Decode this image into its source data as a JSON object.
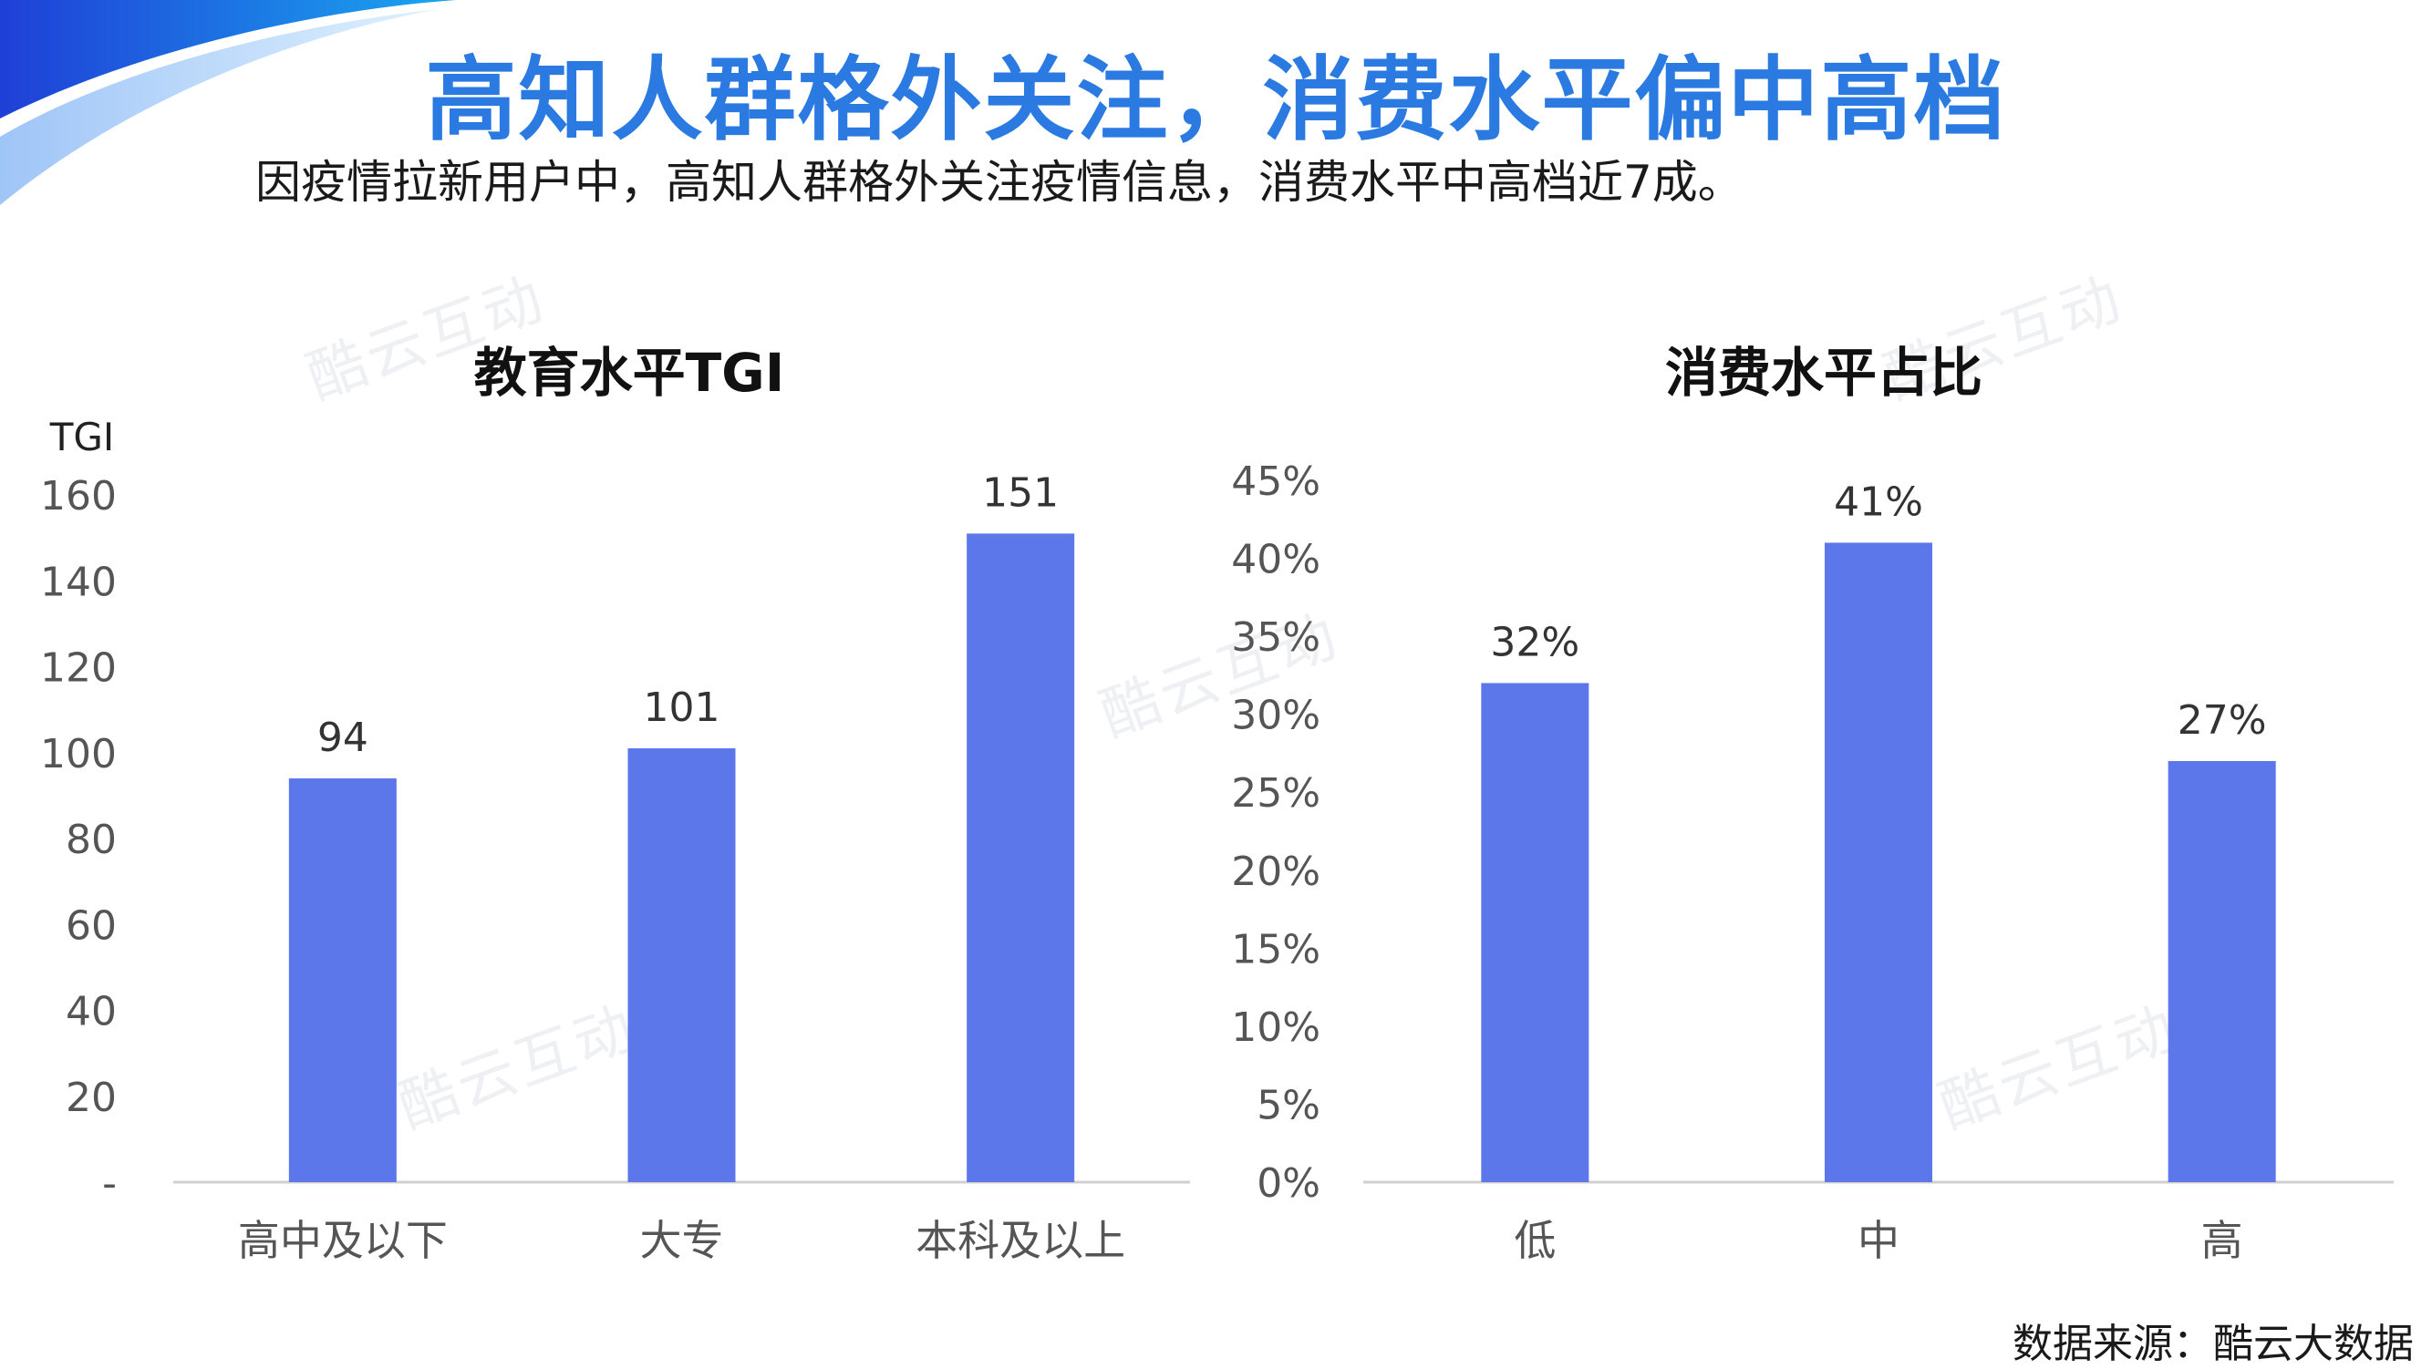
{
  "title": "高知人群格外关注，消费水平偏中高档",
  "subtitle": "因疫情拉新用户中，高知人群格外关注疫情信息，消费水平中高档近7成。",
  "watermark": "酷云互动",
  "source": "数据来源：酷云大数据",
  "colors": {
    "bar": "#5b77ea",
    "title": "#2a7ae2",
    "axis": "#d0d0d0"
  },
  "chart_data": [
    {
      "type": "bar",
      "title": "教育水平TGI",
      "ylabel": "TGI",
      "categories": [
        "高中及以下",
        "大专",
        "本科及以上"
      ],
      "values": [
        94,
        101,
        151
      ],
      "data_labels": [
        "94",
        "101",
        "151"
      ],
      "ylim": [
        0,
        160
      ],
      "yticks": [
        0,
        20,
        40,
        60,
        80,
        100,
        120,
        140,
        160
      ],
      "ytick_labels": [
        "-",
        "20",
        "40",
        "60",
        "80",
        "100",
        "120",
        "140",
        "160"
      ],
      "grid": false
    },
    {
      "type": "bar",
      "title": "消费水平占比",
      "ylabel": "",
      "categories": [
        "低",
        "中",
        "高"
      ],
      "values": [
        32,
        41,
        27
      ],
      "data_labels": [
        "32%",
        "41%",
        "27%"
      ],
      "ylim": [
        0,
        45
      ],
      "yticks": [
        0,
        5,
        10,
        15,
        20,
        25,
        30,
        35,
        40,
        45
      ],
      "ytick_labels": [
        "0%",
        "5%",
        "10%",
        "15%",
        "20%",
        "25%",
        "30%",
        "35%",
        "40%",
        "45%"
      ],
      "grid": false
    }
  ]
}
